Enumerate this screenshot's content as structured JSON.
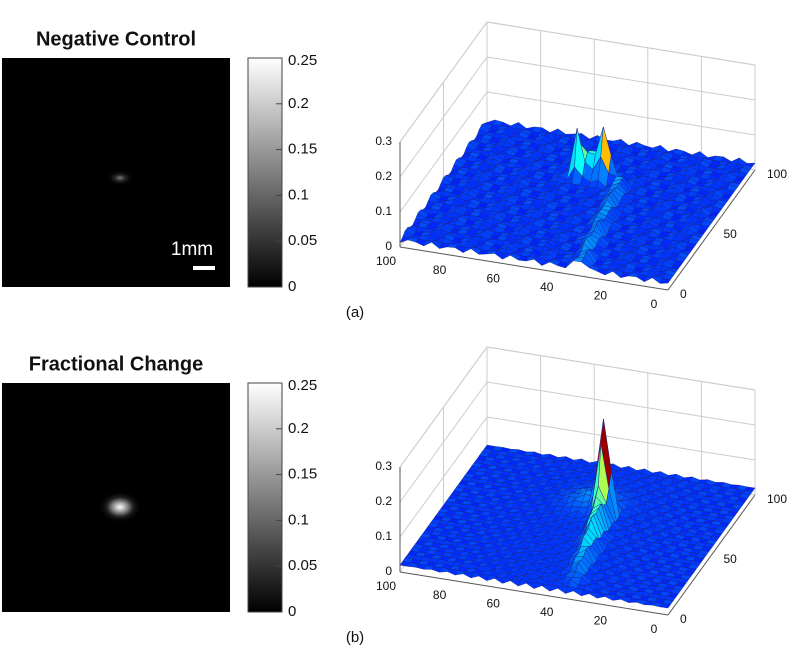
{
  "panels": [
    {
      "label": "(a)",
      "title": "Negative Control",
      "scale_bar": "1mm",
      "colorbar": {
        "lim": [
          0,
          0.25
        ],
        "ticks": [
          0,
          0.05,
          0.1,
          0.15,
          0.2,
          0.25
        ]
      },
      "surface": {
        "xlim": [
          0,
          100
        ],
        "xticks": [
          0,
          20,
          40,
          60,
          80,
          100
        ],
        "ylim": [
          0,
          100
        ],
        "yticks": [
          0,
          50,
          100
        ],
        "zlim": [
          0,
          0.3
        ],
        "zticks": [
          0,
          0.1,
          0.2,
          0.3
        ]
      }
    },
    {
      "label": "(b)",
      "title": "Fractional Change",
      "colorbar": {
        "lim": [
          0,
          0.25
        ],
        "ticks": [
          0,
          0.05,
          0.1,
          0.15,
          0.2,
          0.25
        ]
      },
      "surface": {
        "xlim": [
          0,
          100
        ],
        "xticks": [
          0,
          20,
          40,
          60,
          80,
          100
        ],
        "ylim": [
          0,
          100
        ],
        "yticks": [
          0,
          50,
          100
        ],
        "zlim": [
          0,
          0.3
        ],
        "zticks": [
          0,
          0.1,
          0.2,
          0.3
        ]
      }
    }
  ]
}
